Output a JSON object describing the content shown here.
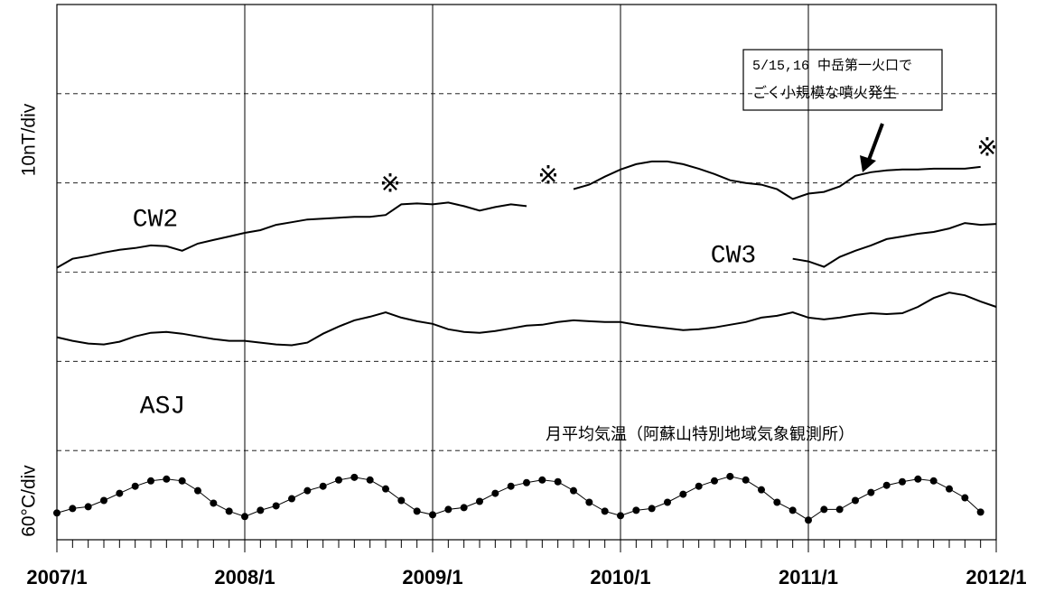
{
  "chart_data": {
    "type": "line",
    "y_label_top": "10nT/div",
    "y_label_bottom": "60°C/div",
    "annotations": {
      "cw2": "CW2",
      "cw3": "CW3",
      "asj": "ASJ",
      "mark1": "※",
      "mark2": "※",
      "mark3": "※",
      "temp_label": "月平均気温（阿蘇山特別地域気象観測所）",
      "box_line1": "5/15,16 中岳第一火口で",
      "box_line2": "ごく小規模な噴火発生"
    },
    "x": [
      "2007/1",
      "2007/2",
      "2007/3",
      "2007/4",
      "2007/5",
      "2007/6",
      "2007/7",
      "2007/8",
      "2007/9",
      "2007/10",
      "2007/11",
      "2007/12",
      "2008/1",
      "2008/2",
      "2008/3",
      "2008/4",
      "2008/5",
      "2008/6",
      "2008/7",
      "2008/8",
      "2008/9",
      "2008/10",
      "2008/11",
      "2008/12",
      "2009/1",
      "2009/2",
      "2009/3",
      "2009/4",
      "2009/5",
      "2009/6",
      "2009/7",
      "2009/8",
      "2009/9",
      "2009/10",
      "2009/11",
      "2009/12",
      "2010/1",
      "2010/2",
      "2010/3",
      "2010/4",
      "2010/5",
      "2010/6",
      "2010/7",
      "2010/8",
      "2010/9",
      "2010/10",
      "2010/11",
      "2010/12",
      "2011/1",
      "2011/2",
      "2011/3",
      "2011/4",
      "2011/5",
      "2011/6",
      "2011/7",
      "2011/8",
      "2011/9",
      "2011/10",
      "2011/11",
      "2011/12",
      "2012/1"
    ],
    "xticks": [
      "2007/1",
      "2008/1",
      "2009/1",
      "2010/1",
      "2011/1",
      "2012/1"
    ],
    "ylim": [
      0,
      6
    ],
    "ygrid": [
      1,
      2,
      3,
      4,
      5
    ],
    "series": [
      {
        "name": "CW2",
        "color": "#000000",
        "markers": false,
        "values": [
          3.05,
          3.15,
          3.18,
          3.22,
          3.25,
          3.27,
          3.3,
          3.29,
          3.24,
          3.32,
          3.36,
          3.4,
          3.44,
          3.47,
          3.53,
          3.56,
          3.59,
          3.6,
          3.61,
          3.62,
          3.62,
          3.64,
          3.76,
          3.77,
          3.76,
          3.78,
          3.74,
          3.69,
          3.73,
          3.76,
          3.74,
          null,
          null,
          3.93,
          3.98,
          4.07,
          4.15,
          4.21,
          4.24,
          4.24,
          4.21,
          4.16,
          4.1,
          4.03,
          4.0,
          3.98,
          3.93,
          3.82,
          3.88,
          3.9,
          3.96,
          4.08,
          4.12,
          4.14,
          4.15,
          4.15,
          4.16,
          4.16,
          4.16,
          4.18,
          null
        ]
      },
      {
        "name": "CW3",
        "color": "#000000",
        "markers": false,
        "values": [
          null,
          null,
          null,
          null,
          null,
          null,
          null,
          null,
          null,
          null,
          null,
          null,
          null,
          null,
          null,
          null,
          null,
          null,
          null,
          null,
          null,
          null,
          null,
          null,
          null,
          null,
          null,
          null,
          null,
          null,
          null,
          null,
          null,
          null,
          null,
          null,
          null,
          null,
          null,
          null,
          null,
          null,
          null,
          null,
          null,
          null,
          null,
          3.15,
          3.12,
          3.06,
          3.17,
          3.24,
          3.3,
          3.37,
          3.4,
          3.43,
          3.45,
          3.49,
          3.55,
          3.53,
          3.54
        ]
      },
      {
        "name": "ASJ",
        "color": "#000000",
        "markers": false,
        "values": [
          2.27,
          2.23,
          2.2,
          2.19,
          2.22,
          2.28,
          2.32,
          2.33,
          2.31,
          2.28,
          2.25,
          2.23,
          2.23,
          2.21,
          2.19,
          2.18,
          2.21,
          2.31,
          2.39,
          2.46,
          2.5,
          2.55,
          2.49,
          2.45,
          2.42,
          2.36,
          2.33,
          2.32,
          2.34,
          2.37,
          2.4,
          2.41,
          2.44,
          2.46,
          2.45,
          2.44,
          2.44,
          2.41,
          2.39,
          2.37,
          2.35,
          2.36,
          2.38,
          2.41,
          2.44,
          2.49,
          2.51,
          2.55,
          2.49,
          2.47,
          2.49,
          2.52,
          2.54,
          2.53,
          2.54,
          2.61,
          2.71,
          2.77,
          2.74,
          2.67,
          2.61
        ]
      },
      {
        "name": "月平均気温",
        "color": "#000000",
        "markers": true,
        "values": [
          0.3,
          0.35,
          0.37,
          0.44,
          0.52,
          0.6,
          0.66,
          0.68,
          0.66,
          0.55,
          0.41,
          0.32,
          0.26,
          0.33,
          0.38,
          0.46,
          0.55,
          0.6,
          0.67,
          0.7,
          0.67,
          0.57,
          0.44,
          0.32,
          0.28,
          0.34,
          0.36,
          0.43,
          0.52,
          0.6,
          0.64,
          0.67,
          0.65,
          0.55,
          0.42,
          0.32,
          0.27,
          0.33,
          0.35,
          0.42,
          0.51,
          0.6,
          0.66,
          0.71,
          0.67,
          0.56,
          0.42,
          0.33,
          0.22,
          0.34,
          0.34,
          0.44,
          0.53,
          0.61,
          0.65,
          0.68,
          0.66,
          0.57,
          0.47,
          0.31,
          null
        ]
      }
    ]
  }
}
